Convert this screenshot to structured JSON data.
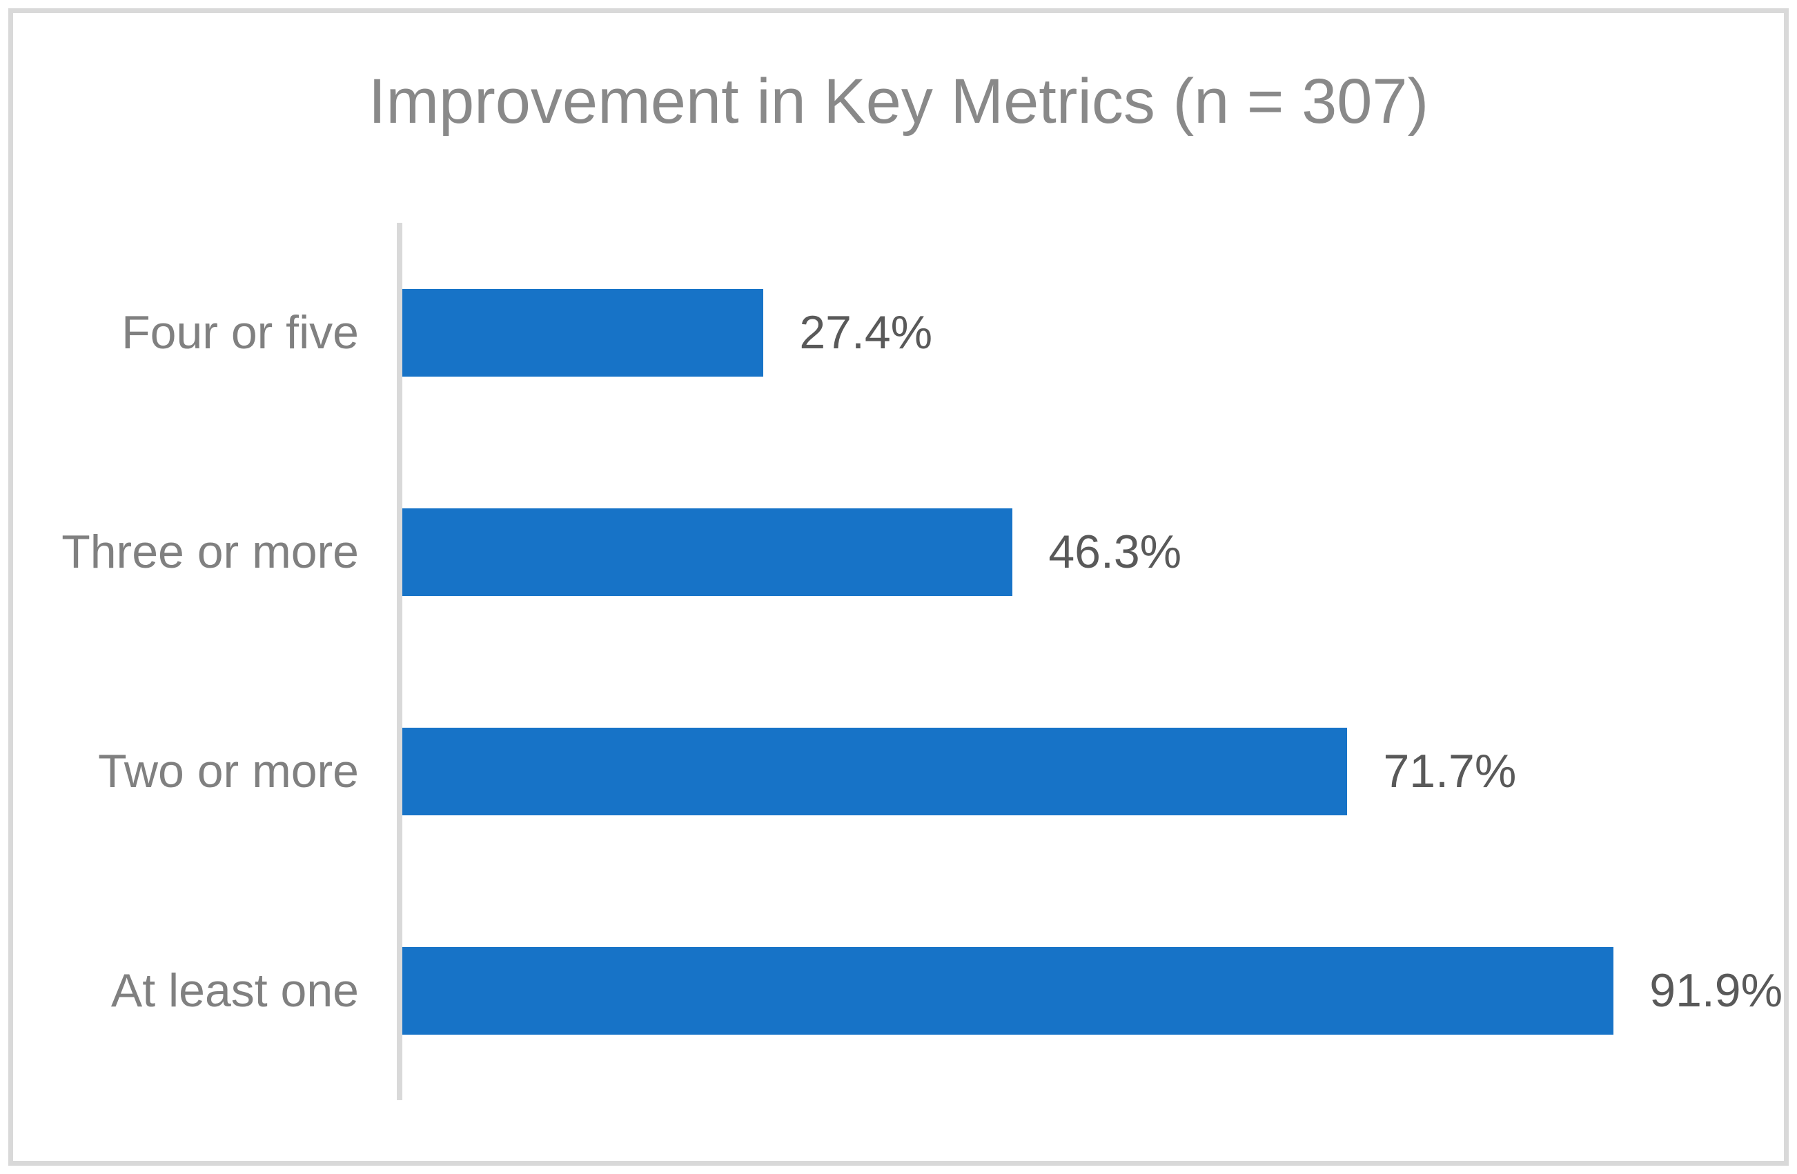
{
  "figure": {
    "background_color": "#FFFFFF",
    "border_color": "#D9D9D9"
  },
  "chart_data": {
    "type": "bar",
    "orientation": "horizontal",
    "title": "Improvement in Key Metrics (n = 307)",
    "categories": [
      "Four or five",
      "Three or more",
      "Two or more",
      "At least one"
    ],
    "values": [
      27.4,
      46.3,
      71.7,
      91.9
    ],
    "value_labels": [
      "27.4%",
      "46.3%",
      "71.7%",
      "91.9%"
    ],
    "xlabel": "",
    "ylabel": "",
    "xlim": [
      0,
      100
    ],
    "grid": false,
    "legend": "none",
    "axis_ticks_visible": false,
    "bar_color": "#1773C7",
    "axis_line_color": "#D9D9D9",
    "title_color": "#898989",
    "category_label_color": "#808080",
    "value_label_color": "#595959"
  }
}
